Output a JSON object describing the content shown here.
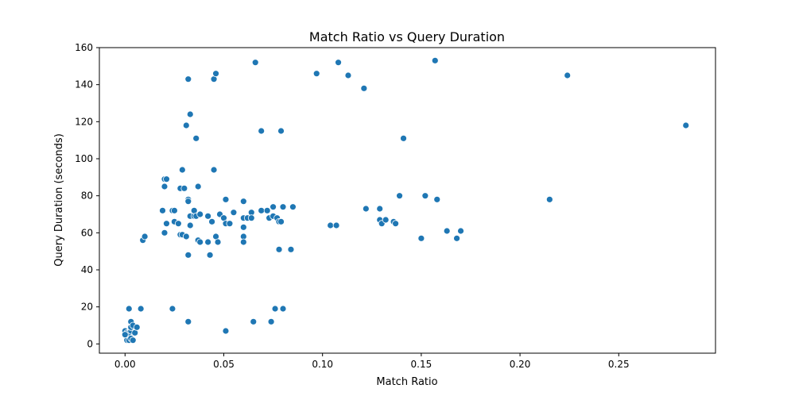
{
  "chart_data": {
    "type": "scatter",
    "title": "Match Ratio vs Query Duration",
    "xlabel": "Match Ratio",
    "ylabel": "Query Duration (seconds)",
    "xlim": [
      -0.013,
      0.299
    ],
    "ylim": [
      -5,
      160
    ],
    "xticks": [
      0.0,
      0.05,
      0.1,
      0.15,
      0.2,
      0.25
    ],
    "xtick_labels": [
      "0.00",
      "0.05",
      "0.10",
      "0.15",
      "0.20",
      "0.25"
    ],
    "yticks": [
      0,
      20,
      40,
      60,
      80,
      100,
      120,
      140,
      160
    ],
    "ytick_labels": [
      "0",
      "20",
      "40",
      "60",
      "80",
      "100",
      "120",
      "140",
      "160"
    ],
    "grid": false,
    "point_color": "#1f77b4",
    "points": [
      [
        0.0,
        7
      ],
      [
        0.001,
        6
      ],
      [
        0.001,
        5
      ],
      [
        0.001,
        3
      ],
      [
        0.001,
        2
      ],
      [
        0.002,
        2
      ],
      [
        0.002,
        6
      ],
      [
        0.003,
        7
      ],
      [
        0.003,
        9
      ],
      [
        0.003,
        12
      ],
      [
        0.003,
        3
      ],
      [
        0.004,
        2
      ],
      [
        0.004,
        10
      ],
      [
        0.005,
        6
      ],
      [
        0.006,
        9
      ],
      [
        0.0,
        5
      ],
      [
        0.002,
        19
      ],
      [
        0.008,
        19
      ],
      [
        0.009,
        56
      ],
      [
        0.01,
        58
      ],
      [
        0.019,
        72
      ],
      [
        0.02,
        60
      ],
      [
        0.02,
        85
      ],
      [
        0.02,
        89
      ],
      [
        0.021,
        89
      ],
      [
        0.021,
        65
      ],
      [
        0.024,
        19
      ],
      [
        0.024,
        72
      ],
      [
        0.025,
        72
      ],
      [
        0.025,
        66
      ],
      [
        0.027,
        65
      ],
      [
        0.028,
        59
      ],
      [
        0.028,
        84
      ],
      [
        0.029,
        59
      ],
      [
        0.029,
        94
      ],
      [
        0.03,
        84
      ],
      [
        0.031,
        118
      ],
      [
        0.031,
        58
      ],
      [
        0.032,
        12
      ],
      [
        0.032,
        78
      ],
      [
        0.032,
        77
      ],
      [
        0.032,
        48
      ],
      [
        0.032,
        143
      ],
      [
        0.033,
        124
      ],
      [
        0.033,
        64
      ],
      [
        0.033,
        69
      ],
      [
        0.035,
        69
      ],
      [
        0.035,
        72
      ],
      [
        0.036,
        111
      ],
      [
        0.036,
        69
      ],
      [
        0.037,
        85
      ],
      [
        0.037,
        56
      ],
      [
        0.038,
        55
      ],
      [
        0.038,
        70
      ],
      [
        0.042,
        55
      ],
      [
        0.042,
        69
      ],
      [
        0.043,
        48
      ],
      [
        0.044,
        66
      ],
      [
        0.045,
        143
      ],
      [
        0.045,
        94
      ],
      [
        0.046,
        146
      ],
      [
        0.046,
        58
      ],
      [
        0.047,
        55
      ],
      [
        0.048,
        70
      ],
      [
        0.05,
        68
      ],
      [
        0.051,
        78
      ],
      [
        0.051,
        65
      ],
      [
        0.051,
        7
      ],
      [
        0.053,
        65
      ],
      [
        0.055,
        71
      ],
      [
        0.06,
        77
      ],
      [
        0.06,
        58
      ],
      [
        0.06,
        55
      ],
      [
        0.06,
        68
      ],
      [
        0.06,
        63
      ],
      [
        0.062,
        68
      ],
      [
        0.064,
        71
      ],
      [
        0.064,
        68
      ],
      [
        0.065,
        12
      ],
      [
        0.066,
        152
      ],
      [
        0.069,
        72
      ],
      [
        0.069,
        115
      ],
      [
        0.072,
        72
      ],
      [
        0.073,
        68
      ],
      [
        0.074,
        12
      ],
      [
        0.075,
        74
      ],
      [
        0.075,
        69
      ],
      [
        0.076,
        19
      ],
      [
        0.077,
        68
      ],
      [
        0.078,
        66
      ],
      [
        0.078,
        51
      ],
      [
        0.079,
        115
      ],
      [
        0.079,
        66
      ],
      [
        0.08,
        74
      ],
      [
        0.08,
        19
      ],
      [
        0.084,
        51
      ],
      [
        0.085,
        74
      ],
      [
        0.097,
        146
      ],
      [
        0.104,
        64
      ],
      [
        0.107,
        64
      ],
      [
        0.108,
        152
      ],
      [
        0.113,
        145
      ],
      [
        0.121,
        138
      ],
      [
        0.122,
        73
      ],
      [
        0.129,
        73
      ],
      [
        0.129,
        67
      ],
      [
        0.13,
        65
      ],
      [
        0.132,
        67
      ],
      [
        0.136,
        66
      ],
      [
        0.137,
        65
      ],
      [
        0.139,
        80
      ],
      [
        0.141,
        111
      ],
      [
        0.15,
        57
      ],
      [
        0.152,
        80
      ],
      [
        0.157,
        153
      ],
      [
        0.158,
        78
      ],
      [
        0.163,
        61
      ],
      [
        0.168,
        57
      ],
      [
        0.17,
        61
      ],
      [
        0.215,
        78
      ],
      [
        0.224,
        145
      ],
      [
        0.284,
        118
      ]
    ]
  }
}
